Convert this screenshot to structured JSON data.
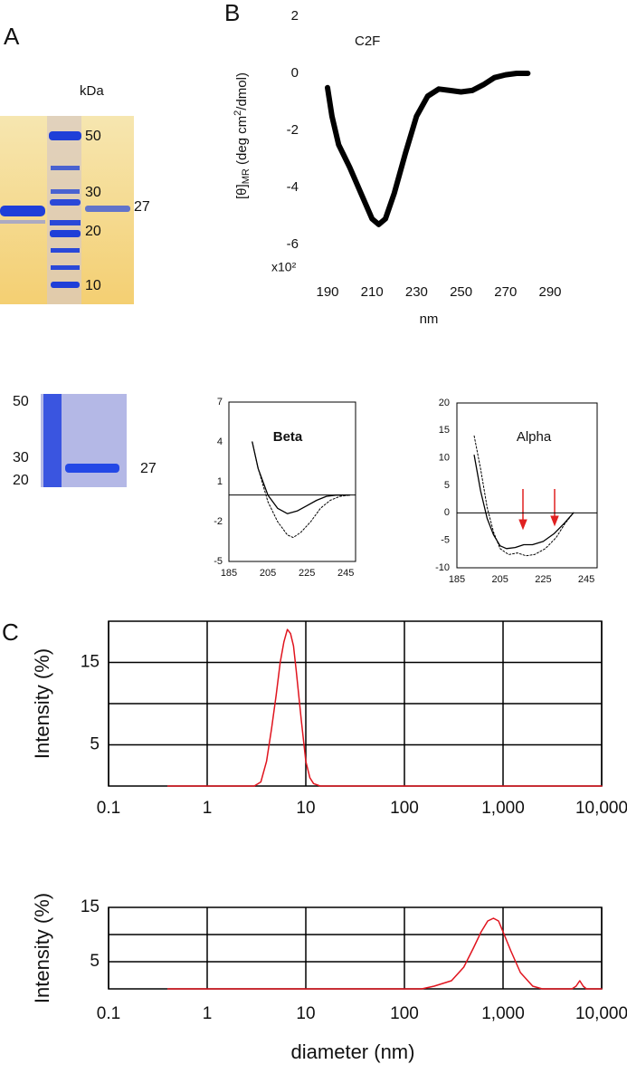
{
  "panel_labels": [
    "A",
    "B",
    "C"
  ],
  "gels": [
    {
      "unit": "kDa",
      "markers": [
        50,
        30,
        20,
        10
      ],
      "band_label": 27
    },
    {
      "markers": [
        50,
        30,
        20
      ],
      "band_label": 27
    }
  ],
  "chart_data": [
    {
      "type": "line",
      "annotation": "C2F",
      "ylabel_parts": [
        "[θ]",
        "MR",
        " (deg cm",
        "2",
        "/dmol)"
      ],
      "y_multiplier": "x10²",
      "xlabel": "nm",
      "xlim": [
        190,
        290
      ],
      "xticks": [
        190,
        210,
        230,
        250,
        270,
        290
      ],
      "ylim": [
        -6,
        2
      ],
      "yticks": [
        2,
        0,
        -2,
        -4,
        -6
      ],
      "frame": false,
      "series": [
        {
          "color": "#000000",
          "width": 6,
          "x": [
            190,
            192,
            195,
            200,
            205,
            210,
            213,
            216,
            220,
            225,
            230,
            235,
            240,
            245,
            250,
            255,
            260,
            265,
            270,
            275,
            280
          ],
          "values": [
            -0.5,
            -1.5,
            -2.5,
            -3.3,
            -4.2,
            -5.1,
            -5.3,
            -5.1,
            -4.2,
            -2.8,
            -1.5,
            -0.8,
            -0.55,
            -0.6,
            -0.65,
            -0.6,
            -0.4,
            -0.15,
            -0.05,
            0,
            0
          ]
        }
      ]
    },
    {
      "type": "line",
      "title": "Beta",
      "title_color": "#1a1aa6",
      "xlim": [
        185,
        250
      ],
      "xticks": [
        185,
        205,
        225,
        245
      ],
      "ylim": [
        -5,
        7
      ],
      "yticks": [
        7,
        4,
        1,
        -2,
        -5
      ],
      "frame": true,
      "zero_line": true,
      "series": [
        {
          "color": "#000000",
          "width": 1.3,
          "x": [
            197,
            200,
            205,
            210,
            215,
            220,
            225,
            230,
            235,
            240,
            247
          ],
          "values": [
            4,
            2,
            0,
            -1,
            -1.4,
            -1.2,
            -0.8,
            -0.4,
            -0.1,
            0,
            0
          ]
        },
        {
          "color": "#000000",
          "width": 1,
          "dash": "2 2",
          "x": [
            197,
            200,
            205,
            210,
            215,
            218,
            222,
            227,
            232,
            237,
            242,
            247
          ],
          "values": [
            4,
            2,
            -0.5,
            -2,
            -3,
            -3.2,
            -2.8,
            -2,
            -1,
            -0.4,
            -0.1,
            0
          ]
        }
      ]
    },
    {
      "type": "line",
      "title": "Alpha",
      "title_color": "#e02020",
      "xlim": [
        185,
        250
      ],
      "xticks": [
        185,
        205,
        225,
        245
      ],
      "ylim": [
        -10,
        20
      ],
      "yticks": [
        20,
        15,
        10,
        5,
        0,
        -5,
        -10
      ],
      "frame": true,
      "zero_line": true,
      "series": [
        {
          "color": "#000000",
          "width": 1.3,
          "x": [
            193,
            196,
            199,
            202,
            205,
            208,
            212,
            216,
            220,
            225,
            230,
            235,
            239
          ],
          "values": [
            10.5,
            4,
            -1,
            -4,
            -6,
            -6.5,
            -6.3,
            -5.8,
            -5.8,
            -5.2,
            -3.8,
            -1.8,
            0
          ]
        },
        {
          "color": "#000000",
          "width": 1,
          "dash": "2 2",
          "x": [
            193,
            196,
            199,
            202,
            205,
            209,
            213,
            217,
            221,
            226,
            231,
            235,
            239
          ],
          "values": [
            14,
            8,
            1,
            -3.5,
            -6.5,
            -7.6,
            -7.3,
            -7.8,
            -7.6,
            -6.5,
            -4.5,
            -2,
            0
          ]
        }
      ]
    },
    {
      "type": "line",
      "ylabel": "Intensity (%)",
      "xscale": "log",
      "xlim": [
        0.1,
        10000
      ],
      "xticks": [
        0.1,
        1,
        10,
        100,
        {
          "value": 1000,
          "label": "1,000"
        },
        {
          "value": 10000,
          "label": "10,000"
        }
      ],
      "ylim": [
        0,
        20
      ],
      "yticks": [
        15,
        5
      ],
      "grid_lines": [
        5,
        10,
        15
      ],
      "frame": true,
      "grid": true,
      "series": [
        {
          "color": "#e0141e",
          "width": 1.5,
          "x": [
            0.4,
            3,
            3.5,
            4,
            4.5,
            5,
            5.5,
            6,
            6.5,
            7,
            7.5,
            8,
            9,
            10,
            11,
            12,
            14,
            10000
          ],
          "values": [
            0,
            0,
            0.5,
            3,
            7,
            11,
            15,
            17.5,
            19,
            18.5,
            17,
            14,
            8,
            3,
            1,
            0.3,
            0,
            0
          ]
        }
      ]
    },
    {
      "type": "line",
      "ylabel": "Intensity (%)",
      "xlabel": "diameter (nm)",
      "xscale": "log",
      "xlim": [
        0.1,
        10000
      ],
      "xticks": [
        0.1,
        1,
        10,
        100,
        {
          "value": 1000,
          "label": "1,000"
        },
        {
          "value": 10000,
          "label": "10,000"
        }
      ],
      "ylim": [
        0,
        15
      ],
      "yticks": [
        15,
        5
      ],
      "grid_lines": [
        5,
        10
      ],
      "frame": true,
      "grid": true,
      "series": [
        {
          "color": "#e0141e",
          "width": 1.5,
          "x": [
            0.4,
            150,
            200,
            300,
            400,
            500,
            600,
            700,
            800,
            900,
            1000,
            1200,
            1500,
            2000,
            2500,
            5000,
            5500,
            6000,
            6500,
            7000,
            10000
          ],
          "values": [
            0,
            0,
            0.5,
            1.5,
            4,
            7.5,
            10.5,
            12.5,
            13,
            12.5,
            10.5,
            7,
            3,
            0.5,
            0,
            0,
            0.5,
            1.5,
            0.5,
            0,
            0
          ]
        }
      ]
    }
  ]
}
